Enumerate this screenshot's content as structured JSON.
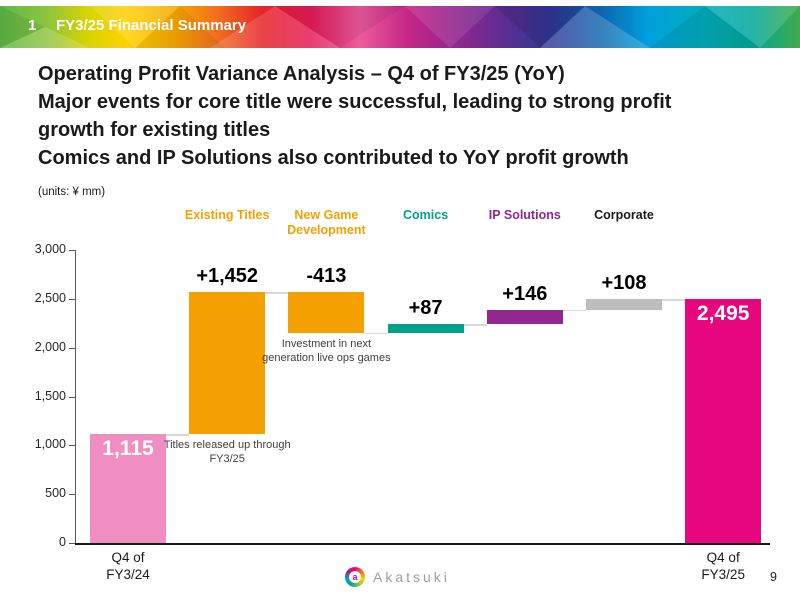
{
  "banner": {
    "number": "1",
    "title": "FY3/25 Financial Summary"
  },
  "headline": {
    "lines": [
      "Operating Profit Variance Analysis – Q4 of FY3/25 (YoY)",
      "Major events for core title were successful, leading to strong profit",
      "growth for existing titles",
      "Comics and IP Solutions also contributed to YoY profit growth"
    ]
  },
  "chart_data": {
    "type": "bar",
    "subtype": "waterfall",
    "title": "Operating Profit Variance Analysis – Q4 of FY3/25 (YoY)",
    "units_label": "(units: ¥ mm)",
    "ylim": [
      0,
      3000
    ],
    "ytick_step": 500,
    "grid": false,
    "bars": [
      {
        "category": "Q4 of FY3/24",
        "category_lines": [
          "Q4 of",
          "FY3/24"
        ],
        "kind": "total",
        "value": 1115,
        "label": "1,115",
        "color": "#F18EC1"
      },
      {
        "category": "Existing Titles",
        "kind": "delta",
        "value": 1452,
        "label": "+1,452",
        "color": "#F4A100",
        "header_color": "#F4A100",
        "annotation": "Titles released up through FY3/25"
      },
      {
        "category": "New Game Development",
        "kind": "delta",
        "value": -413,
        "label": "-413",
        "color": "#F4A100",
        "header_color": "#F4A100",
        "annotation": "Investment in next generation live ops games"
      },
      {
        "category": "Comics",
        "kind": "delta",
        "value": 87,
        "label": "+87",
        "color": "#00A287",
        "header_color": "#00A287"
      },
      {
        "category": "IP Solutions",
        "kind": "delta",
        "value": 146,
        "label": "+146",
        "color": "#91278F",
        "header_color": "#91278F"
      },
      {
        "category": "Corporate",
        "kind": "delta",
        "value": 108,
        "label": "+108",
        "color": "#BDBDBD",
        "header_color": "#1A1A1A"
      },
      {
        "category": "Q4 of FY3/25",
        "category_lines": [
          "Q4 of",
          "FY3/25"
        ],
        "kind": "total",
        "value": 2495,
        "label": "2,495",
        "color": "#E6077E"
      }
    ]
  },
  "footer": {
    "logo_text": "Akatsuki",
    "page_number": "9"
  }
}
